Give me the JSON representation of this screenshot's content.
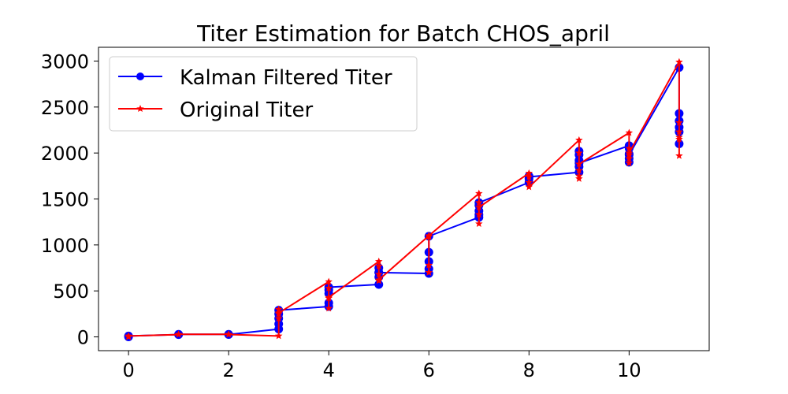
{
  "chart_data": {
    "type": "line",
    "title": "Titer Estimation for Batch CHOS_april",
    "xlabel": "",
    "ylabel": "",
    "xlim": [
      -0.6,
      11.6
    ],
    "ylim": [
      -150,
      3150
    ],
    "xticks": [
      0,
      2,
      4,
      6,
      8,
      10
    ],
    "yticks": [
      0,
      500,
      1000,
      1500,
      2000,
      2500,
      3000
    ],
    "grid": false,
    "legend": "top-left",
    "series": [
      {
        "name": "Kalman Filtered Titer",
        "color": "#0000ff",
        "marker": "circle",
        "points": [
          [
            0,
            0
          ],
          [
            0,
            10
          ],
          [
            1,
            25
          ],
          [
            1,
            28
          ],
          [
            2,
            28
          ],
          [
            2,
            26
          ],
          [
            3,
            85
          ],
          [
            3,
            140
          ],
          [
            3,
            200
          ],
          [
            3,
            250
          ],
          [
            3,
            290
          ],
          [
            4,
            330
          ],
          [
            4,
            370
          ],
          [
            4,
            470
          ],
          [
            4,
            510
          ],
          [
            4,
            540
          ],
          [
            5,
            570
          ],
          [
            5,
            650
          ],
          [
            5,
            700
          ],
          [
            5,
            750
          ],
          [
            5,
            700
          ],
          [
            6,
            690
          ],
          [
            6,
            740
          ],
          [
            6,
            820
          ],
          [
            6,
            920
          ],
          [
            6,
            1095
          ],
          [
            7,
            1300
          ],
          [
            7,
            1330
          ],
          [
            7,
            1370
          ],
          [
            7,
            1430
          ],
          [
            7,
            1460
          ],
          [
            8,
            1680
          ],
          [
            8,
            1720
          ],
          [
            8,
            1750
          ],
          [
            8,
            1740
          ],
          [
            9,
            1790
          ],
          [
            9,
            1850
          ],
          [
            9,
            1920
          ],
          [
            9,
            1980
          ],
          [
            9,
            2020
          ],
          [
            9,
            1890
          ],
          [
            10,
            2080
          ],
          [
            10,
            2050
          ],
          [
            10,
            1990
          ],
          [
            10,
            1940
          ],
          [
            10,
            1900
          ],
          [
            10,
            1980
          ],
          [
            11,
            2930
          ],
          [
            11,
            2430
          ],
          [
            11,
            2350
          ],
          [
            11,
            2280
          ],
          [
            11,
            2230
          ],
          [
            11,
            2100
          ]
        ]
      },
      {
        "name": "Original Titer",
        "color": "#ff0000",
        "marker": "star",
        "points": [
          [
            0,
            0
          ],
          [
            0,
            10
          ],
          [
            1,
            25
          ],
          [
            1,
            28
          ],
          [
            2,
            28
          ],
          [
            2,
            26
          ],
          [
            3,
            10
          ],
          [
            3,
            300
          ],
          [
            3,
            250
          ],
          [
            3,
            200
          ],
          [
            3,
            260
          ],
          [
            4,
            600
          ],
          [
            4,
            530
          ],
          [
            4,
            420
          ],
          [
            4,
            310
          ],
          [
            4,
            430
          ],
          [
            5,
            820
          ],
          [
            5,
            770
          ],
          [
            5,
            680
          ],
          [
            5,
            610
          ],
          [
            5,
            620
          ],
          [
            6,
            1100
          ],
          [
            6,
            700
          ],
          [
            6,
            780
          ],
          [
            6,
            1090
          ],
          [
            6,
            1100
          ],
          [
            7,
            1560
          ],
          [
            7,
            1460
          ],
          [
            7,
            1330
          ],
          [
            7,
            1230
          ],
          [
            7,
            1410
          ],
          [
            8,
            1780
          ],
          [
            8,
            1740
          ],
          [
            8,
            1680
          ],
          [
            8,
            1630
          ],
          [
            9,
            2140
          ],
          [
            9,
            2000
          ],
          [
            9,
            1810
          ],
          [
            9,
            1750
          ],
          [
            9,
            1720
          ],
          [
            9,
            1880
          ],
          [
            10,
            2220
          ],
          [
            10,
            2050
          ],
          [
            10,
            1980
          ],
          [
            10,
            1940
          ],
          [
            10,
            1890
          ],
          [
            10,
            2000
          ],
          [
            11,
            2990
          ],
          [
            11,
            1970
          ],
          [
            11,
            2150
          ],
          [
            11,
            2330
          ],
          [
            11,
            2230
          ],
          [
            11,
            2170
          ]
        ]
      }
    ]
  }
}
